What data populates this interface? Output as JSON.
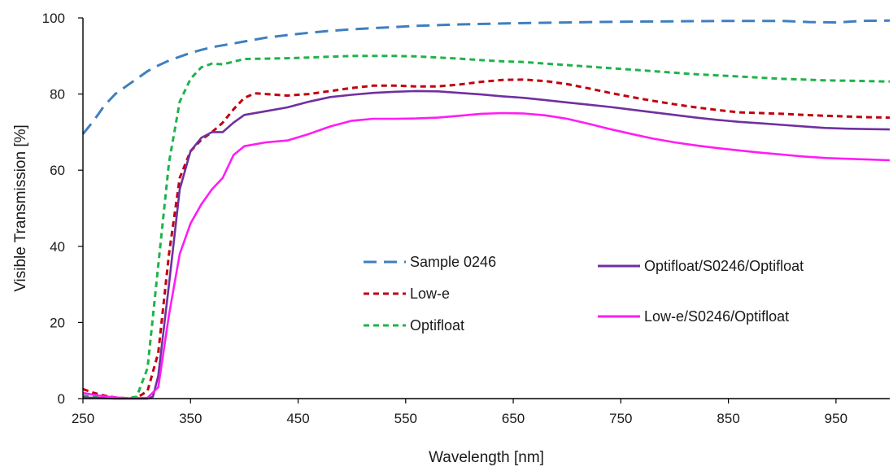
{
  "chart_data": {
    "type": "line",
    "title": "",
    "xlabel": "Wavelength [nm]",
    "ylabel": "Visible Transmission [%]",
    "xlim": [
      250,
      1000
    ],
    "ylim": [
      0,
      100
    ],
    "x_ticks": [
      250,
      350,
      450,
      550,
      650,
      750,
      850,
      950
    ],
    "y_ticks": [
      0,
      20,
      40,
      60,
      80,
      100
    ],
    "grid": false,
    "legend_position": "center",
    "series": [
      {
        "name": "Sample 0246",
        "color": "#3f7fbf",
        "dash": "long-dash",
        "points": [
          [
            250,
            69.5
          ],
          [
            260,
            73
          ],
          [
            270,
            77
          ],
          [
            280,
            80
          ],
          [
            290,
            82
          ],
          [
            300,
            84
          ],
          [
            310,
            86
          ],
          [
            320,
            87.5
          ],
          [
            330,
            88.8
          ],
          [
            340,
            89.8
          ],
          [
            350,
            90.8
          ],
          [
            360,
            91.6
          ],
          [
            370,
            92.3
          ],
          [
            380,
            92.8
          ],
          [
            390,
            93.3
          ],
          [
            400,
            93.8
          ],
          [
            420,
            94.8
          ],
          [
            440,
            95.5
          ],
          [
            460,
            96.1
          ],
          [
            480,
            96.6
          ],
          [
            500,
            97
          ],
          [
            520,
            97.3
          ],
          [
            540,
            97.6
          ],
          [
            560,
            97.9
          ],
          [
            580,
            98.1
          ],
          [
            600,
            98.3
          ],
          [
            650,
            98.6
          ],
          [
            700,
            98.8
          ],
          [
            750,
            99
          ],
          [
            800,
            99.1
          ],
          [
            850,
            99.2
          ],
          [
            900,
            99.2
          ],
          [
            925,
            98.9
          ],
          [
            950,
            98.8
          ],
          [
            975,
            99.2
          ],
          [
            1000,
            99.3
          ]
        ]
      },
      {
        "name": "Low-e",
        "color": "#c0000f",
        "dash": "short-dash",
        "points": [
          [
            250,
            2.5
          ],
          [
            260,
            1.5
          ],
          [
            270,
            0.8
          ],
          [
            280,
            0.3
          ],
          [
            290,
            0.1
          ],
          [
            300,
            0.2
          ],
          [
            310,
            2
          ],
          [
            320,
            12
          ],
          [
            330,
            38
          ],
          [
            340,
            58
          ],
          [
            350,
            65
          ],
          [
            360,
            68
          ],
          [
            370,
            70
          ],
          [
            380,
            72.5
          ],
          [
            390,
            76
          ],
          [
            400,
            79
          ],
          [
            410,
            80.2
          ],
          [
            420,
            80
          ],
          [
            440,
            79.6
          ],
          [
            460,
            80
          ],
          [
            480,
            80.8
          ],
          [
            500,
            81.6
          ],
          [
            520,
            82.2
          ],
          [
            540,
            82.2
          ],
          [
            560,
            82
          ],
          [
            580,
            82
          ],
          [
            600,
            82.5
          ],
          [
            620,
            83.2
          ],
          [
            640,
            83.7
          ],
          [
            660,
            83.8
          ],
          [
            680,
            83.4
          ],
          [
            700,
            82.6
          ],
          [
            720,
            81.5
          ],
          [
            740,
            80.3
          ],
          [
            760,
            79.2
          ],
          [
            780,
            78.2
          ],
          [
            800,
            77.3
          ],
          [
            820,
            76.5
          ],
          [
            840,
            75.8
          ],
          [
            860,
            75.2
          ],
          [
            880,
            75
          ],
          [
            900,
            74.8
          ],
          [
            920,
            74.5
          ],
          [
            940,
            74.3
          ],
          [
            960,
            74.1
          ],
          [
            980,
            73.9
          ],
          [
            1000,
            73.8
          ]
        ]
      },
      {
        "name": "Optifloat",
        "color": "#1fb34a",
        "dash": "short-dash",
        "points": [
          [
            250,
            0.8
          ],
          [
            260,
            0.4
          ],
          [
            270,
            0.2
          ],
          [
            280,
            0.1
          ],
          [
            290,
            0.1
          ],
          [
            300,
            0.5
          ],
          [
            310,
            8
          ],
          [
            320,
            35
          ],
          [
            330,
            62
          ],
          [
            340,
            78
          ],
          [
            350,
            84
          ],
          [
            360,
            87
          ],
          [
            370,
            88
          ],
          [
            380,
            87.8
          ],
          [
            390,
            88.5
          ],
          [
            400,
            89.2
          ],
          [
            420,
            89.3
          ],
          [
            440,
            89.4
          ],
          [
            460,
            89.6
          ],
          [
            480,
            89.8
          ],
          [
            500,
            90
          ],
          [
            520,
            90
          ],
          [
            540,
            90
          ],
          [
            560,
            89.9
          ],
          [
            580,
            89.6
          ],
          [
            600,
            89.3
          ],
          [
            620,
            88.9
          ],
          [
            640,
            88.6
          ],
          [
            660,
            88.4
          ],
          [
            680,
            88
          ],
          [
            700,
            87.6
          ],
          [
            720,
            87.2
          ],
          [
            740,
            86.8
          ],
          [
            760,
            86.4
          ],
          [
            780,
            86
          ],
          [
            800,
            85.6
          ],
          [
            820,
            85.2
          ],
          [
            840,
            84.9
          ],
          [
            860,
            84.6
          ],
          [
            880,
            84.3
          ],
          [
            900,
            84
          ],
          [
            920,
            83.8
          ],
          [
            940,
            83.6
          ],
          [
            960,
            83.5
          ],
          [
            980,
            83.4
          ],
          [
            1000,
            83.3
          ]
        ]
      },
      {
        "name": "Optifloat/S0246/Optifloat",
        "color": "#7030a0",
        "dash": "solid",
        "points": [
          [
            250,
            0.3
          ],
          [
            260,
            0.2
          ],
          [
            270,
            0.1
          ],
          [
            280,
            0
          ],
          [
            290,
            0
          ],
          [
            300,
            0
          ],
          [
            310,
            0
          ],
          [
            315,
            0.5
          ],
          [
            320,
            6
          ],
          [
            330,
            30
          ],
          [
            340,
            55
          ],
          [
            350,
            65
          ],
          [
            360,
            68.5
          ],
          [
            370,
            70
          ],
          [
            380,
            70
          ],
          [
            390,
            72.5
          ],
          [
            400,
            74.5
          ],
          [
            420,
            75.5
          ],
          [
            440,
            76.5
          ],
          [
            460,
            78
          ],
          [
            480,
            79.2
          ],
          [
            500,
            79.8
          ],
          [
            520,
            80.3
          ],
          [
            540,
            80.6
          ],
          [
            560,
            80.8
          ],
          [
            580,
            80.7
          ],
          [
            600,
            80.3
          ],
          [
            620,
            79.9
          ],
          [
            640,
            79.4
          ],
          [
            660,
            79
          ],
          [
            680,
            78.4
          ],
          [
            700,
            77.8
          ],
          [
            720,
            77.2
          ],
          [
            740,
            76.6
          ],
          [
            760,
            75.9
          ],
          [
            780,
            75.2
          ],
          [
            800,
            74.5
          ],
          [
            820,
            73.8
          ],
          [
            840,
            73.2
          ],
          [
            860,
            72.7
          ],
          [
            880,
            72.3
          ],
          [
            900,
            71.9
          ],
          [
            920,
            71.5
          ],
          [
            940,
            71.1
          ],
          [
            960,
            70.9
          ],
          [
            980,
            70.8
          ],
          [
            1000,
            70.7
          ]
        ]
      },
      {
        "name": "Low-e/S0246/Optifloat",
        "color": "#ff1cf5",
        "dash": "solid",
        "points": [
          [
            250,
            1.5
          ],
          [
            260,
            1
          ],
          [
            270,
            0.6
          ],
          [
            280,
            0.3
          ],
          [
            290,
            0.1
          ],
          [
            300,
            0.1
          ],
          [
            310,
            0.2
          ],
          [
            320,
            3
          ],
          [
            330,
            22
          ],
          [
            340,
            38
          ],
          [
            350,
            46
          ],
          [
            360,
            51
          ],
          [
            370,
            55
          ],
          [
            380,
            58
          ],
          [
            390,
            64
          ],
          [
            400,
            66.3
          ],
          [
            420,
            67.3
          ],
          [
            440,
            67.8
          ],
          [
            460,
            69.5
          ],
          [
            480,
            71.5
          ],
          [
            500,
            73
          ],
          [
            520,
            73.5
          ],
          [
            540,
            73.5
          ],
          [
            560,
            73.6
          ],
          [
            580,
            73.8
          ],
          [
            600,
            74.3
          ],
          [
            620,
            74.8
          ],
          [
            640,
            75
          ],
          [
            660,
            74.9
          ],
          [
            680,
            74.4
          ],
          [
            700,
            73.5
          ],
          [
            720,
            72.2
          ],
          [
            740,
            70.8
          ],
          [
            760,
            69.5
          ],
          [
            780,
            68.3
          ],
          [
            800,
            67.3
          ],
          [
            820,
            66.5
          ],
          [
            840,
            65.8
          ],
          [
            860,
            65.2
          ],
          [
            880,
            64.6
          ],
          [
            900,
            64.1
          ],
          [
            920,
            63.6
          ],
          [
            940,
            63.2
          ],
          [
            960,
            63
          ],
          [
            980,
            62.8
          ],
          [
            1000,
            62.6
          ]
        ]
      }
    ]
  }
}
